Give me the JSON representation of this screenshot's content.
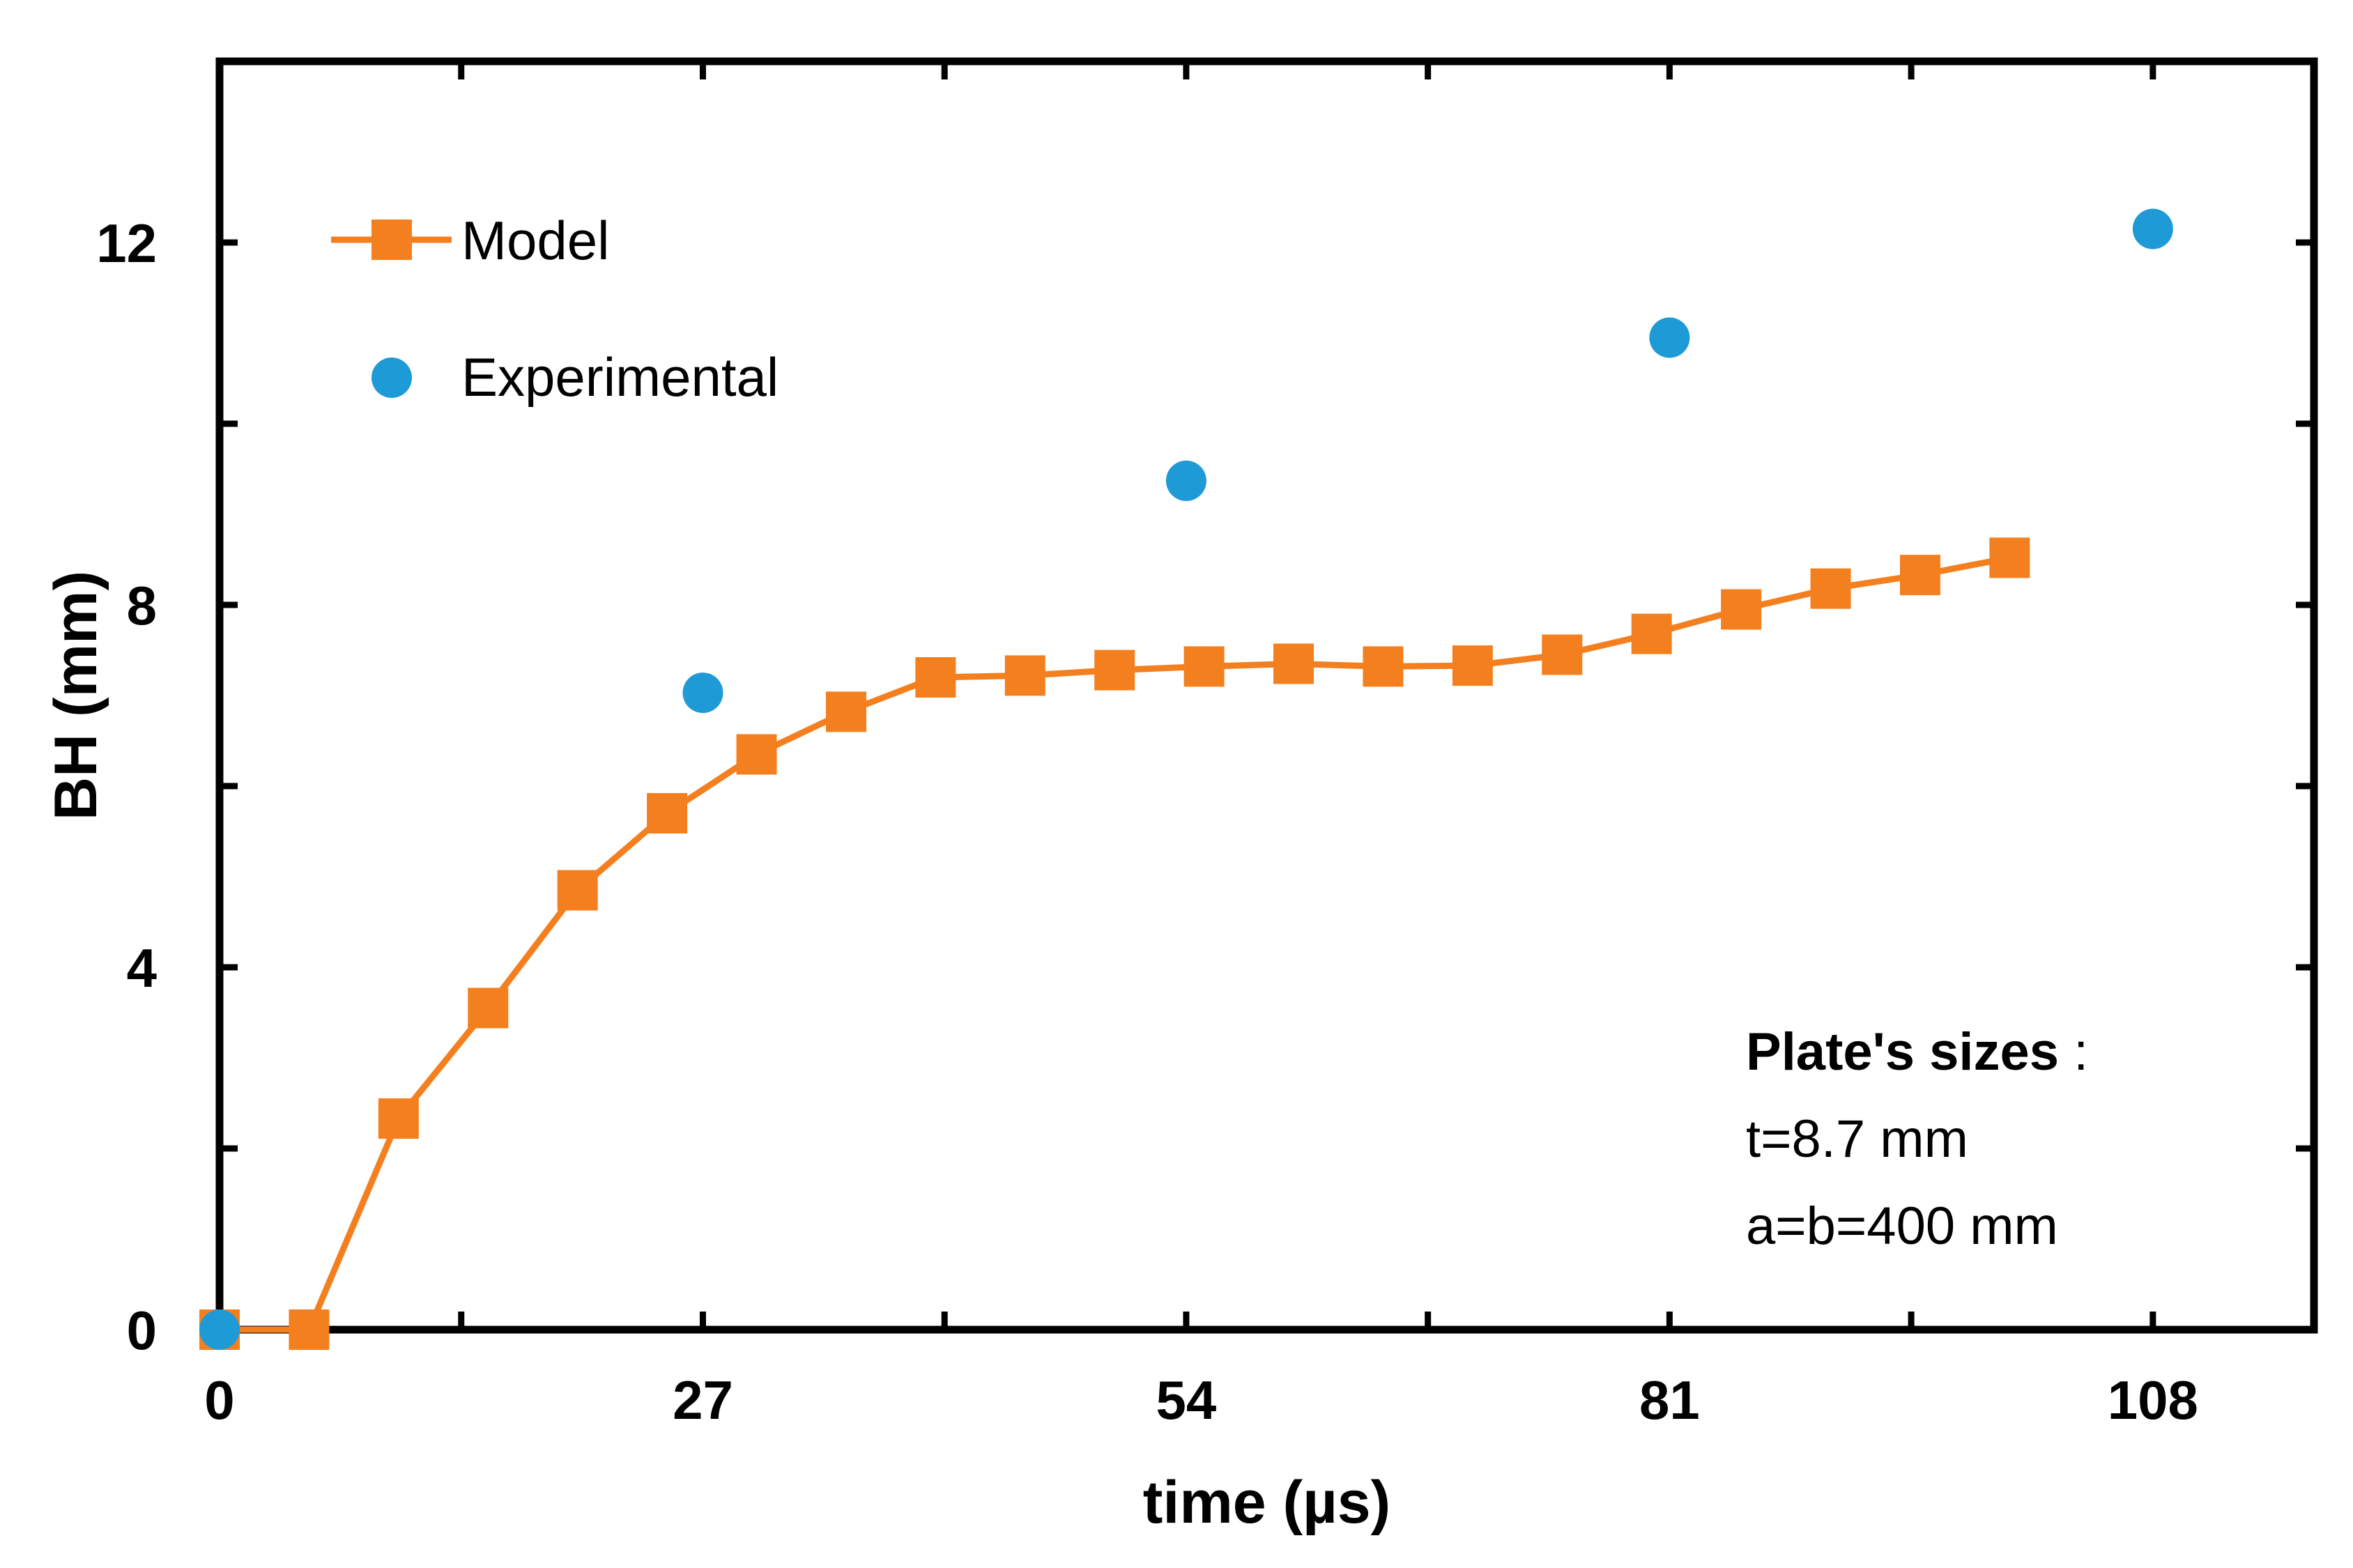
{
  "chart_data": {
    "type": "line",
    "title": "",
    "xlabel": "time (µs)",
    "ylabel": "BH (mm)",
    "xlim": [
      0,
      117
    ],
    "ylim": [
      0,
      14
    ],
    "xticks": [
      0,
      27,
      54,
      81,
      108
    ],
    "yticks": [
      0,
      4,
      8,
      12
    ],
    "x_tick_labels": [
      "0",
      "27",
      "54",
      "81",
      "108"
    ],
    "y_tick_labels": [
      "0",
      "4",
      "8",
      "12"
    ],
    "legend_position": "top-left",
    "series": [
      {
        "name": "Model",
        "style": "line-square",
        "color": "#F47F1F",
        "x": [
          0,
          5,
          10,
          15,
          20,
          25,
          30,
          35,
          40,
          45,
          50,
          55,
          60,
          65,
          70,
          75,
          80,
          85,
          90,
          95,
          100
        ],
        "y": [
          0,
          0,
          2.33,
          3.55,
          4.85,
          5.7,
          6.35,
          6.82,
          7.2,
          7.22,
          7.28,
          7.32,
          7.35,
          7.32,
          7.33,
          7.45,
          7.68,
          7.95,
          8.18,
          8.33,
          8.52
        ]
      },
      {
        "name": "Experimental",
        "style": "scatter-circle",
        "color": "#1E9AD6",
        "x": [
          0,
          27,
          54,
          81,
          108
        ],
        "y": [
          0,
          7.03,
          9.37,
          10.95,
          12.15
        ]
      }
    ],
    "annotation": {
      "title": "Plate's sizes",
      "title_suffix": " :",
      "lines": [
        "t=8.7 mm",
        "a=b=400 mm"
      ]
    }
  }
}
